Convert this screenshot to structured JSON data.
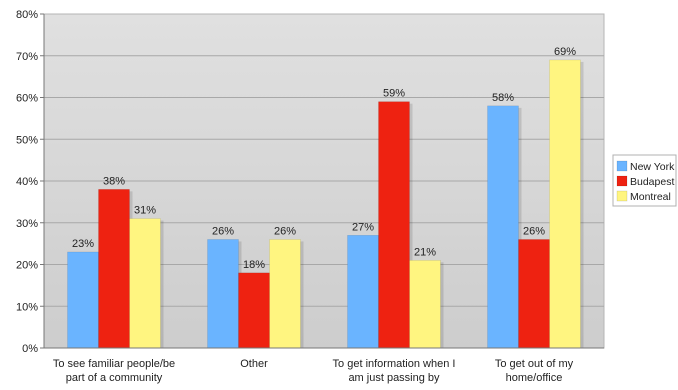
{
  "chart_data": {
    "type": "bar",
    "title": "",
    "xlabel": "",
    "ylabel": "",
    "ylim": [
      0,
      80
    ],
    "y_ticks": [
      "0%",
      "10%",
      "20%",
      "30%",
      "40%",
      "50%",
      "60%",
      "70%",
      "80%"
    ],
    "y_tick_values": [
      0,
      10,
      20,
      30,
      40,
      50,
      60,
      70,
      80
    ],
    "grid": true,
    "legend_position": "right",
    "categories": [
      [
        "To see familiar people/be",
        "part of a community"
      ],
      [
        "Other"
      ],
      [
        "To get information when I",
        "am just passing by"
      ],
      [
        "To get out of my",
        "home/office"
      ]
    ],
    "series": [
      {
        "name": "New York",
        "color": "#6ab4ff",
        "values": [
          23,
          26,
          27,
          58
        ],
        "labels": [
          "23%",
          "26%",
          "27%",
          "58%"
        ]
      },
      {
        "name": "Budapest",
        "color": "#ee2211",
        "values": [
          38,
          18,
          59,
          26
        ],
        "labels": [
          "38%",
          "18%",
          "59%",
          "26%"
        ]
      },
      {
        "name": "Montreal",
        "color": "#fff580",
        "values": [
          31,
          26,
          21,
          69
        ],
        "labels": [
          "31%",
          "26%",
          "21%",
          "69%"
        ]
      }
    ]
  }
}
